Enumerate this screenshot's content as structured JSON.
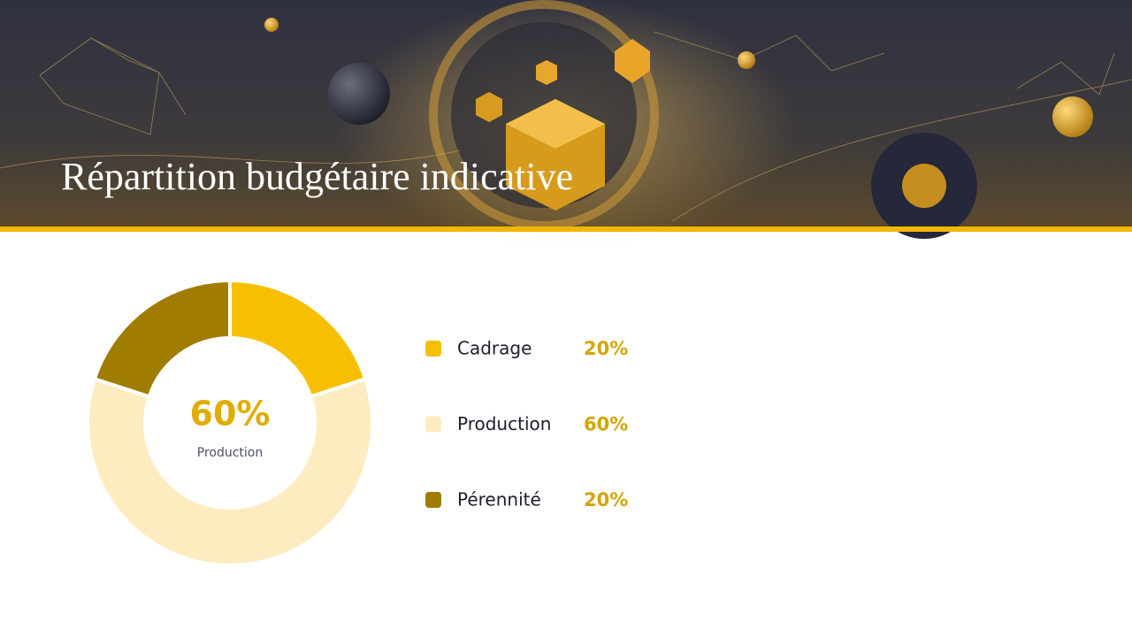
{
  "chart_data": {
    "type": "donut",
    "title": "Répartition budgétaire indicative",
    "categories": [
      "Cadrage",
      "Production",
      "Pérennité"
    ],
    "values": [
      20,
      60,
      20
    ],
    "value_labels": [
      "20%",
      "60%",
      "20%"
    ],
    "colors": [
      "#f6c000",
      "#fcecc0",
      "#a07c00"
    ],
    "highlight": 1
  }
}
